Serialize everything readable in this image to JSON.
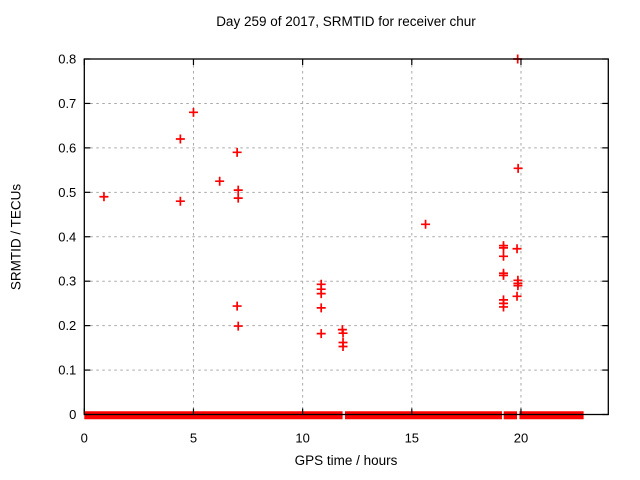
{
  "chart_data": {
    "type": "scatter",
    "title": "Day 259 of 2017, SRMTID for receiver chur",
    "xlabel": "GPS time / hours",
    "ylabel": "SRMTID / TECUs",
    "xlim": [
      0,
      24
    ],
    "ylim": [
      0,
      0.8
    ],
    "grid": true,
    "legend": "none",
    "xticks": [
      {
        "v": 0,
        "label": "0"
      },
      {
        "v": 5,
        "label": "5"
      },
      {
        "v": 10,
        "label": "10"
      },
      {
        "v": 15,
        "label": "15"
      },
      {
        "v": 20,
        "label": "20"
      }
    ],
    "yticks": [
      {
        "v": 0.0,
        "label": "0"
      },
      {
        "v": 0.1,
        "label": "0.1"
      },
      {
        "v": 0.2,
        "label": "0.2"
      },
      {
        "v": 0.3,
        "label": "0.3"
      },
      {
        "v": 0.4,
        "label": "0.4"
      },
      {
        "v": 0.5,
        "label": "0.5"
      },
      {
        "v": 0.6,
        "label": "0.6"
      },
      {
        "v": 0.7,
        "label": "0.7"
      },
      {
        "v": 0.8,
        "label": "0.8"
      }
    ],
    "marker": {
      "shape": "plus",
      "color": "#ff0000",
      "size": 9,
      "stroke_width": 1.7
    },
    "colors": {
      "grid": "#a8a8a8",
      "axis": "#000000",
      "text": "#000000",
      "background": "#ffffff"
    },
    "points": [
      [
        0.9,
        0.49
      ],
      [
        4.4,
        0.62
      ],
      [
        4.4,
        0.48
      ],
      [
        5.0,
        0.68
      ],
      [
        6.2,
        0.525
      ],
      [
        7.0,
        0.59
      ],
      [
        7.05,
        0.505
      ],
      [
        7.05,
        0.487
      ],
      [
        7.0,
        0.244
      ],
      [
        7.05,
        0.199
      ],
      [
        10.85,
        0.293
      ],
      [
        10.85,
        0.282
      ],
      [
        10.85,
        0.272
      ],
      [
        10.85,
        0.24
      ],
      [
        10.85,
        0.182
      ],
      [
        11.82,
        0.191
      ],
      [
        11.85,
        0.183
      ],
      [
        11.85,
        0.162
      ],
      [
        11.85,
        0.153
      ],
      [
        15.63,
        0.428
      ],
      [
        19.2,
        0.38
      ],
      [
        19.2,
        0.375
      ],
      [
        19.2,
        0.356
      ],
      [
        19.2,
        0.318
      ],
      [
        19.2,
        0.313
      ],
      [
        19.2,
        0.258
      ],
      [
        19.2,
        0.25
      ],
      [
        19.2,
        0.242
      ],
      [
        19.85,
        0.8
      ],
      [
        19.87,
        0.554
      ],
      [
        19.82,
        0.373
      ],
      [
        19.86,
        0.302
      ],
      [
        19.86,
        0.295
      ],
      [
        19.86,
        0.29
      ],
      [
        19.82,
        0.266
      ]
    ],
    "zero_band": {
      "y": 0,
      "thickness_px": 8,
      "segments": [
        [
          0.0,
          11.83
        ],
        [
          11.94,
          19.13
        ],
        [
          19.21,
          19.82
        ],
        [
          19.93,
          22.87
        ]
      ]
    }
  }
}
